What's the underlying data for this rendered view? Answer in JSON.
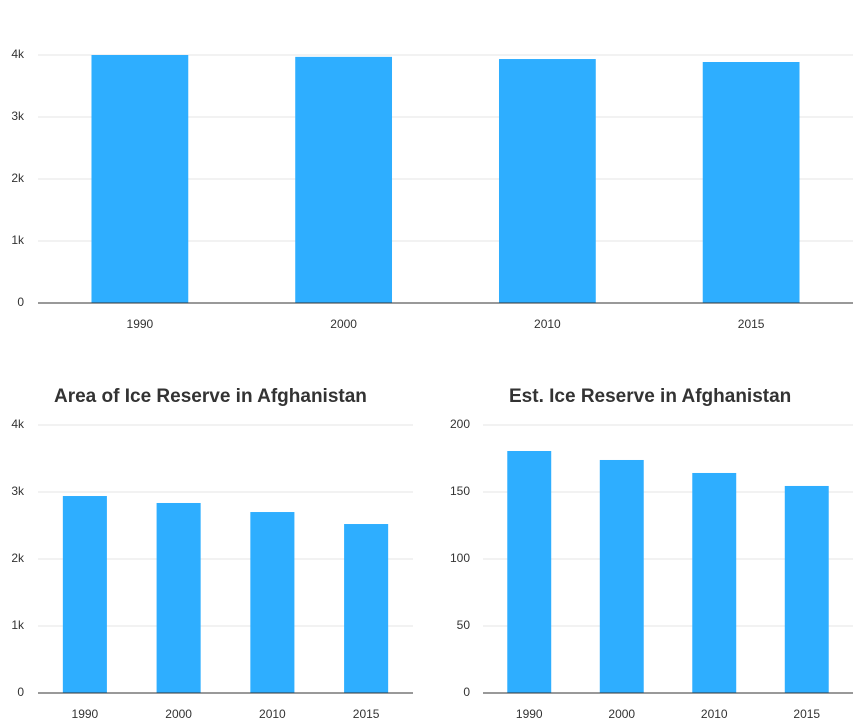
{
  "chart_data": [
    {
      "type": "bar",
      "categories": [
        "1990",
        "2000",
        "2010",
        "2015"
      ],
      "values": [
        4000,
        3970,
        3935,
        3887
      ],
      "color": "#2eaeff",
      "ylim": [
        0,
        4000
      ],
      "yticks": [
        0,
        {
          "value": 1000,
          "label": "1k"
        },
        {
          "value": 2000,
          "label": "2k"
        },
        {
          "value": 3000,
          "label": "3k"
        },
        {
          "value": 4000,
          "label": "4k"
        }
      ],
      "grid": true
    },
    {
      "type": "bar",
      "title": "Area of Ice Reserve in Afghanistan",
      "categories": [
        "1990",
        "2000",
        "2010",
        "2015"
      ],
      "values": [
        2940,
        2836,
        2701,
        2522
      ],
      "color": "#2eaeff",
      "ylim": [
        0,
        4000
      ],
      "yticks": [
        0,
        {
          "value": 1000,
          "label": "1k"
        },
        {
          "value": 2000,
          "label": "2k"
        },
        {
          "value": 3000,
          "label": "3k"
        },
        {
          "value": 4000,
          "label": "4k"
        }
      ],
      "grid": true
    },
    {
      "type": "bar",
      "title": "Est. Ice Reserve in Afghanistan",
      "categories": [
        "1990",
        "2000",
        "2010",
        "2015"
      ],
      "values": [
        180.6,
        173.9,
        164.2,
        154.5
      ],
      "color": "#2eaeff",
      "ylim": [
        0,
        200
      ],
      "yticks": [
        0,
        50,
        100,
        150,
        200
      ],
      "grid": true
    }
  ]
}
